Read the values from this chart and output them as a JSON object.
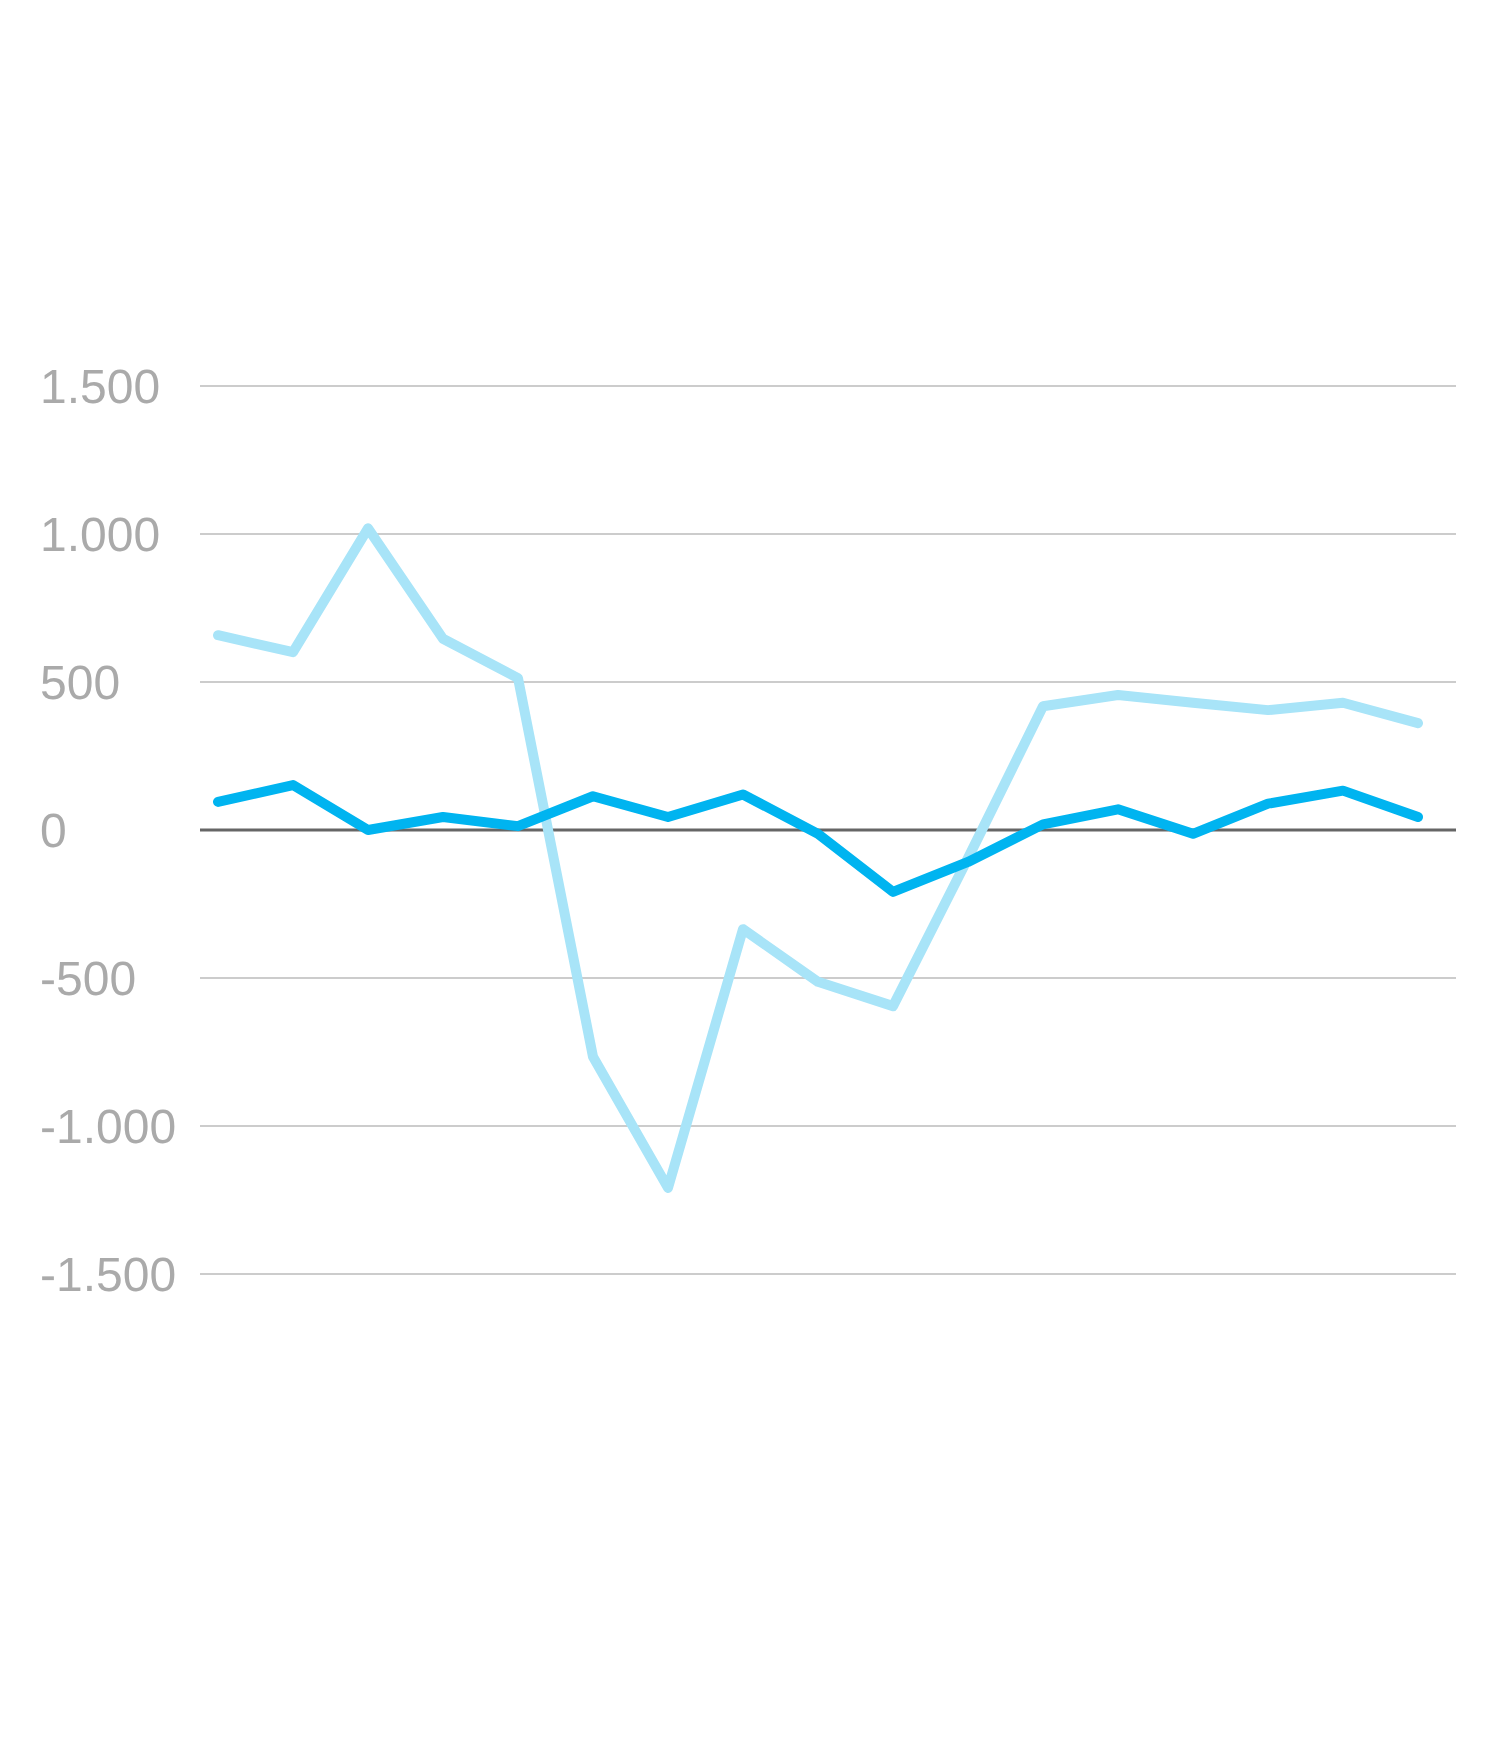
{
  "chart_data": {
    "type": "line",
    "categories": [
      null,
      null,
      null,
      null,
      null,
      null,
      null,
      null,
      null,
      null,
      null,
      null,
      null,
      null,
      null,
      null,
      null
    ],
    "ylim": [
      -1500,
      1500
    ],
    "yticks": [
      {
        "value": -1500,
        "label": "-1.500"
      },
      {
        "value": -1000,
        "label": "-1.000"
      },
      -500,
      0,
      500,
      {
        "value": 1000,
        "label": "1.000"
      },
      {
        "value": 1500,
        "label": "1.500"
      }
    ],
    "series": [
      {
        "color": "#a8e4f8",
        "values": [
          658,
          601,
          1019,
          646,
          513,
          -766,
          -1209,
          -335,
          -513,
          -595,
          -95,
          418,
          456,
          430,
          405,
          430,
          361
        ]
      },
      {
        "color": "#00b4f0",
        "values": [
          95,
          152,
          0,
          44,
          13,
          114,
          44,
          120,
          -13,
          -209,
          -108,
          19,
          70,
          -13,
          89,
          133,
          44
        ]
      }
    ],
    "ref_lines": [
      {
        "axis": "y",
        "value": 0,
        "color": "#666666"
      }
    ],
    "grid": "y",
    "marker": "none",
    "line_style": "solid"
  }
}
